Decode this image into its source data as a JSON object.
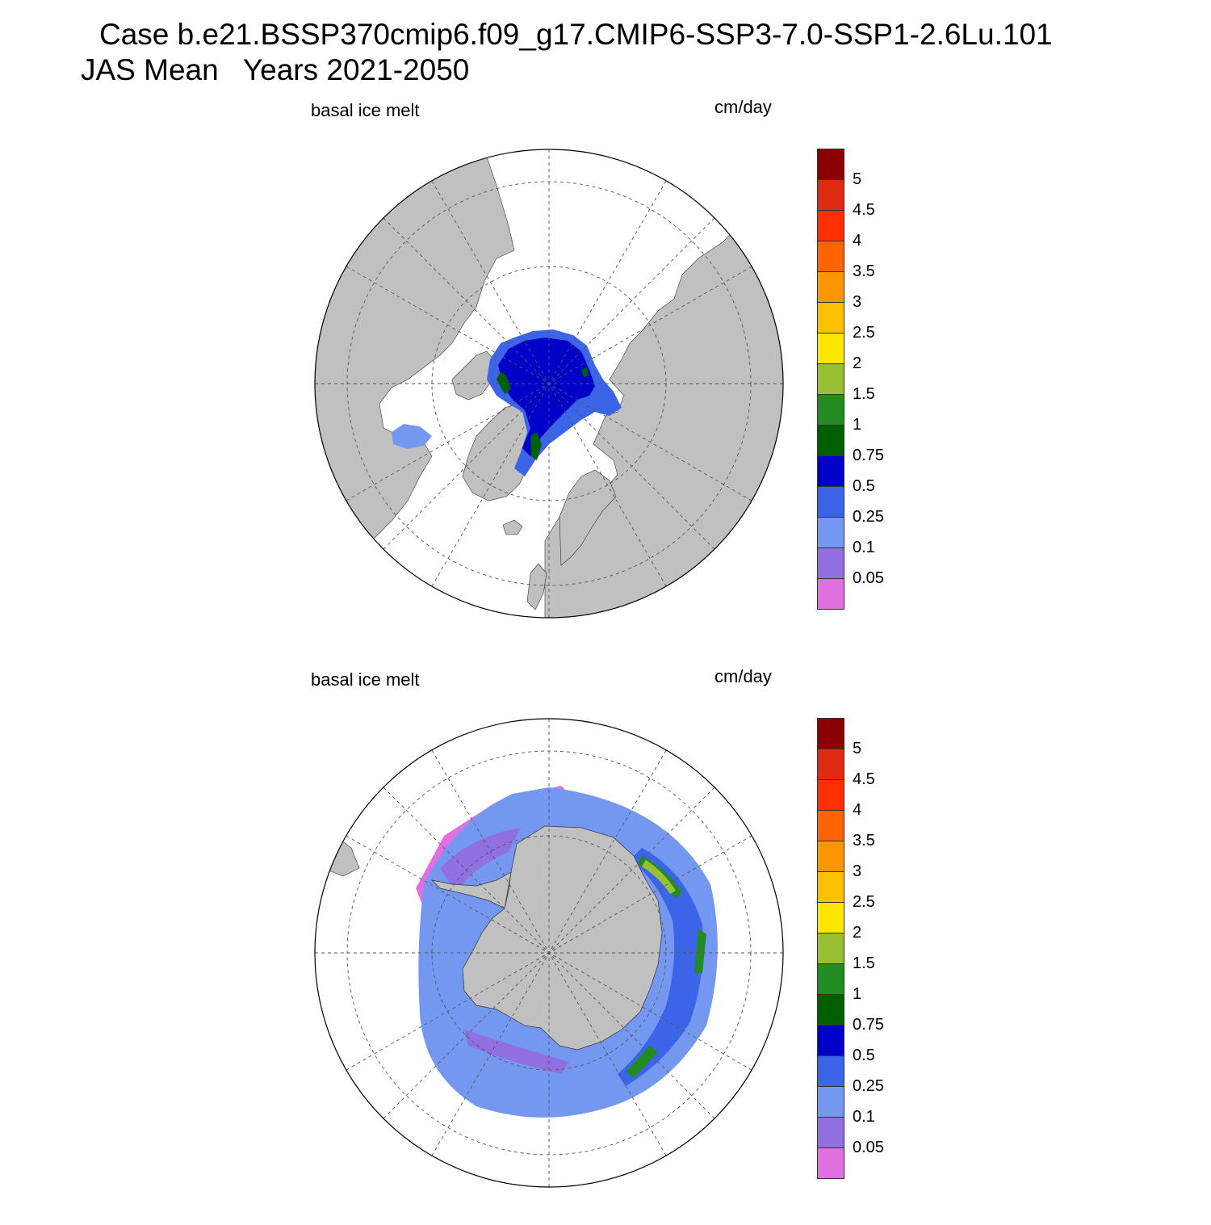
{
  "title": {
    "line1": "Case b.e21.BSSP370cmip6.f09_g17.CMIP6-SSP3-7.0-SSP1-2.6Lu.101",
    "line2": "JAS Mean   Years 2021-2050"
  },
  "panels": [
    {
      "id": "north",
      "left_label": "basal ice melt",
      "units": "cm/day",
      "hemisphere": "Northern Hemisphere polar stereographic"
    },
    {
      "id": "south",
      "left_label": "basal ice melt",
      "units": "cm/day",
      "hemisphere": "Southern Hemisphere polar stereographic"
    }
  ],
  "colorbar": {
    "levels": [
      "0.05",
      "0.1",
      "0.25",
      "0.5",
      "0.75",
      "1",
      "1.5",
      "2",
      "2.5",
      "3",
      "3.5",
      "4",
      "4.5",
      "5"
    ],
    "colors": [
      "#e070e0",
      "#9070e0",
      "#7498f0",
      "#3c64e8",
      "#0000c8",
      "#006000",
      "#228b22",
      "#98c032",
      "#ffe600",
      "#ffc000",
      "#ff9600",
      "#ff6400",
      "#ff3000",
      "#e02a14",
      "#8b0000"
    ]
  },
  "colors": {
    "land": "#c0c0c0",
    "ocean": "#ffffff",
    "grid": "#555555"
  }
}
